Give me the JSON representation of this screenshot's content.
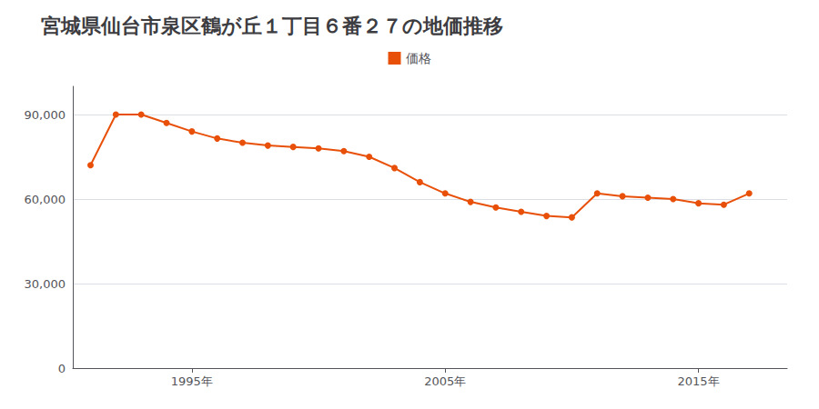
{
  "chart_data": {
    "type": "line",
    "title": "宮城県仙台市泉区鶴が丘１丁目６番２７の地価推移",
    "x": [
      1991,
      1992,
      1993,
      1994,
      1995,
      1996,
      1997,
      1998,
      1999,
      2000,
      2001,
      2002,
      2003,
      2004,
      2005,
      2006,
      2007,
      2008,
      2009,
      2010,
      2011,
      2012,
      2013,
      2014,
      2015,
      2016,
      2017
    ],
    "series": [
      {
        "name": "価格",
        "color": "#E8500A",
        "marker": "circle",
        "values": [
          72000,
          90000,
          90000,
          87000,
          84000,
          81500,
          80000,
          79000,
          78500,
          78000,
          77000,
          75000,
          71000,
          66000,
          62000,
          59000,
          57000,
          55500,
          54000,
          53500,
          62000,
          61000,
          60500,
          60000,
          58500,
          58000,
          62000
        ]
      }
    ],
    "xlim": [
      1990.3,
      2018.5
    ],
    "xticks": [
      {
        "value": 1995,
        "label": "1995年"
      },
      {
        "value": 2005,
        "label": "2005年"
      },
      {
        "value": 2015,
        "label": "2015年"
      }
    ],
    "ylim": [
      0,
      100000
    ],
    "yticks": [
      0,
      {
        "value": 30000,
        "label": "30,000"
      },
      {
        "value": 60000,
        "label": "60,000"
      },
      {
        "value": 90000,
        "label": "90,000"
      }
    ],
    "grid": true,
    "legend": "top"
  }
}
